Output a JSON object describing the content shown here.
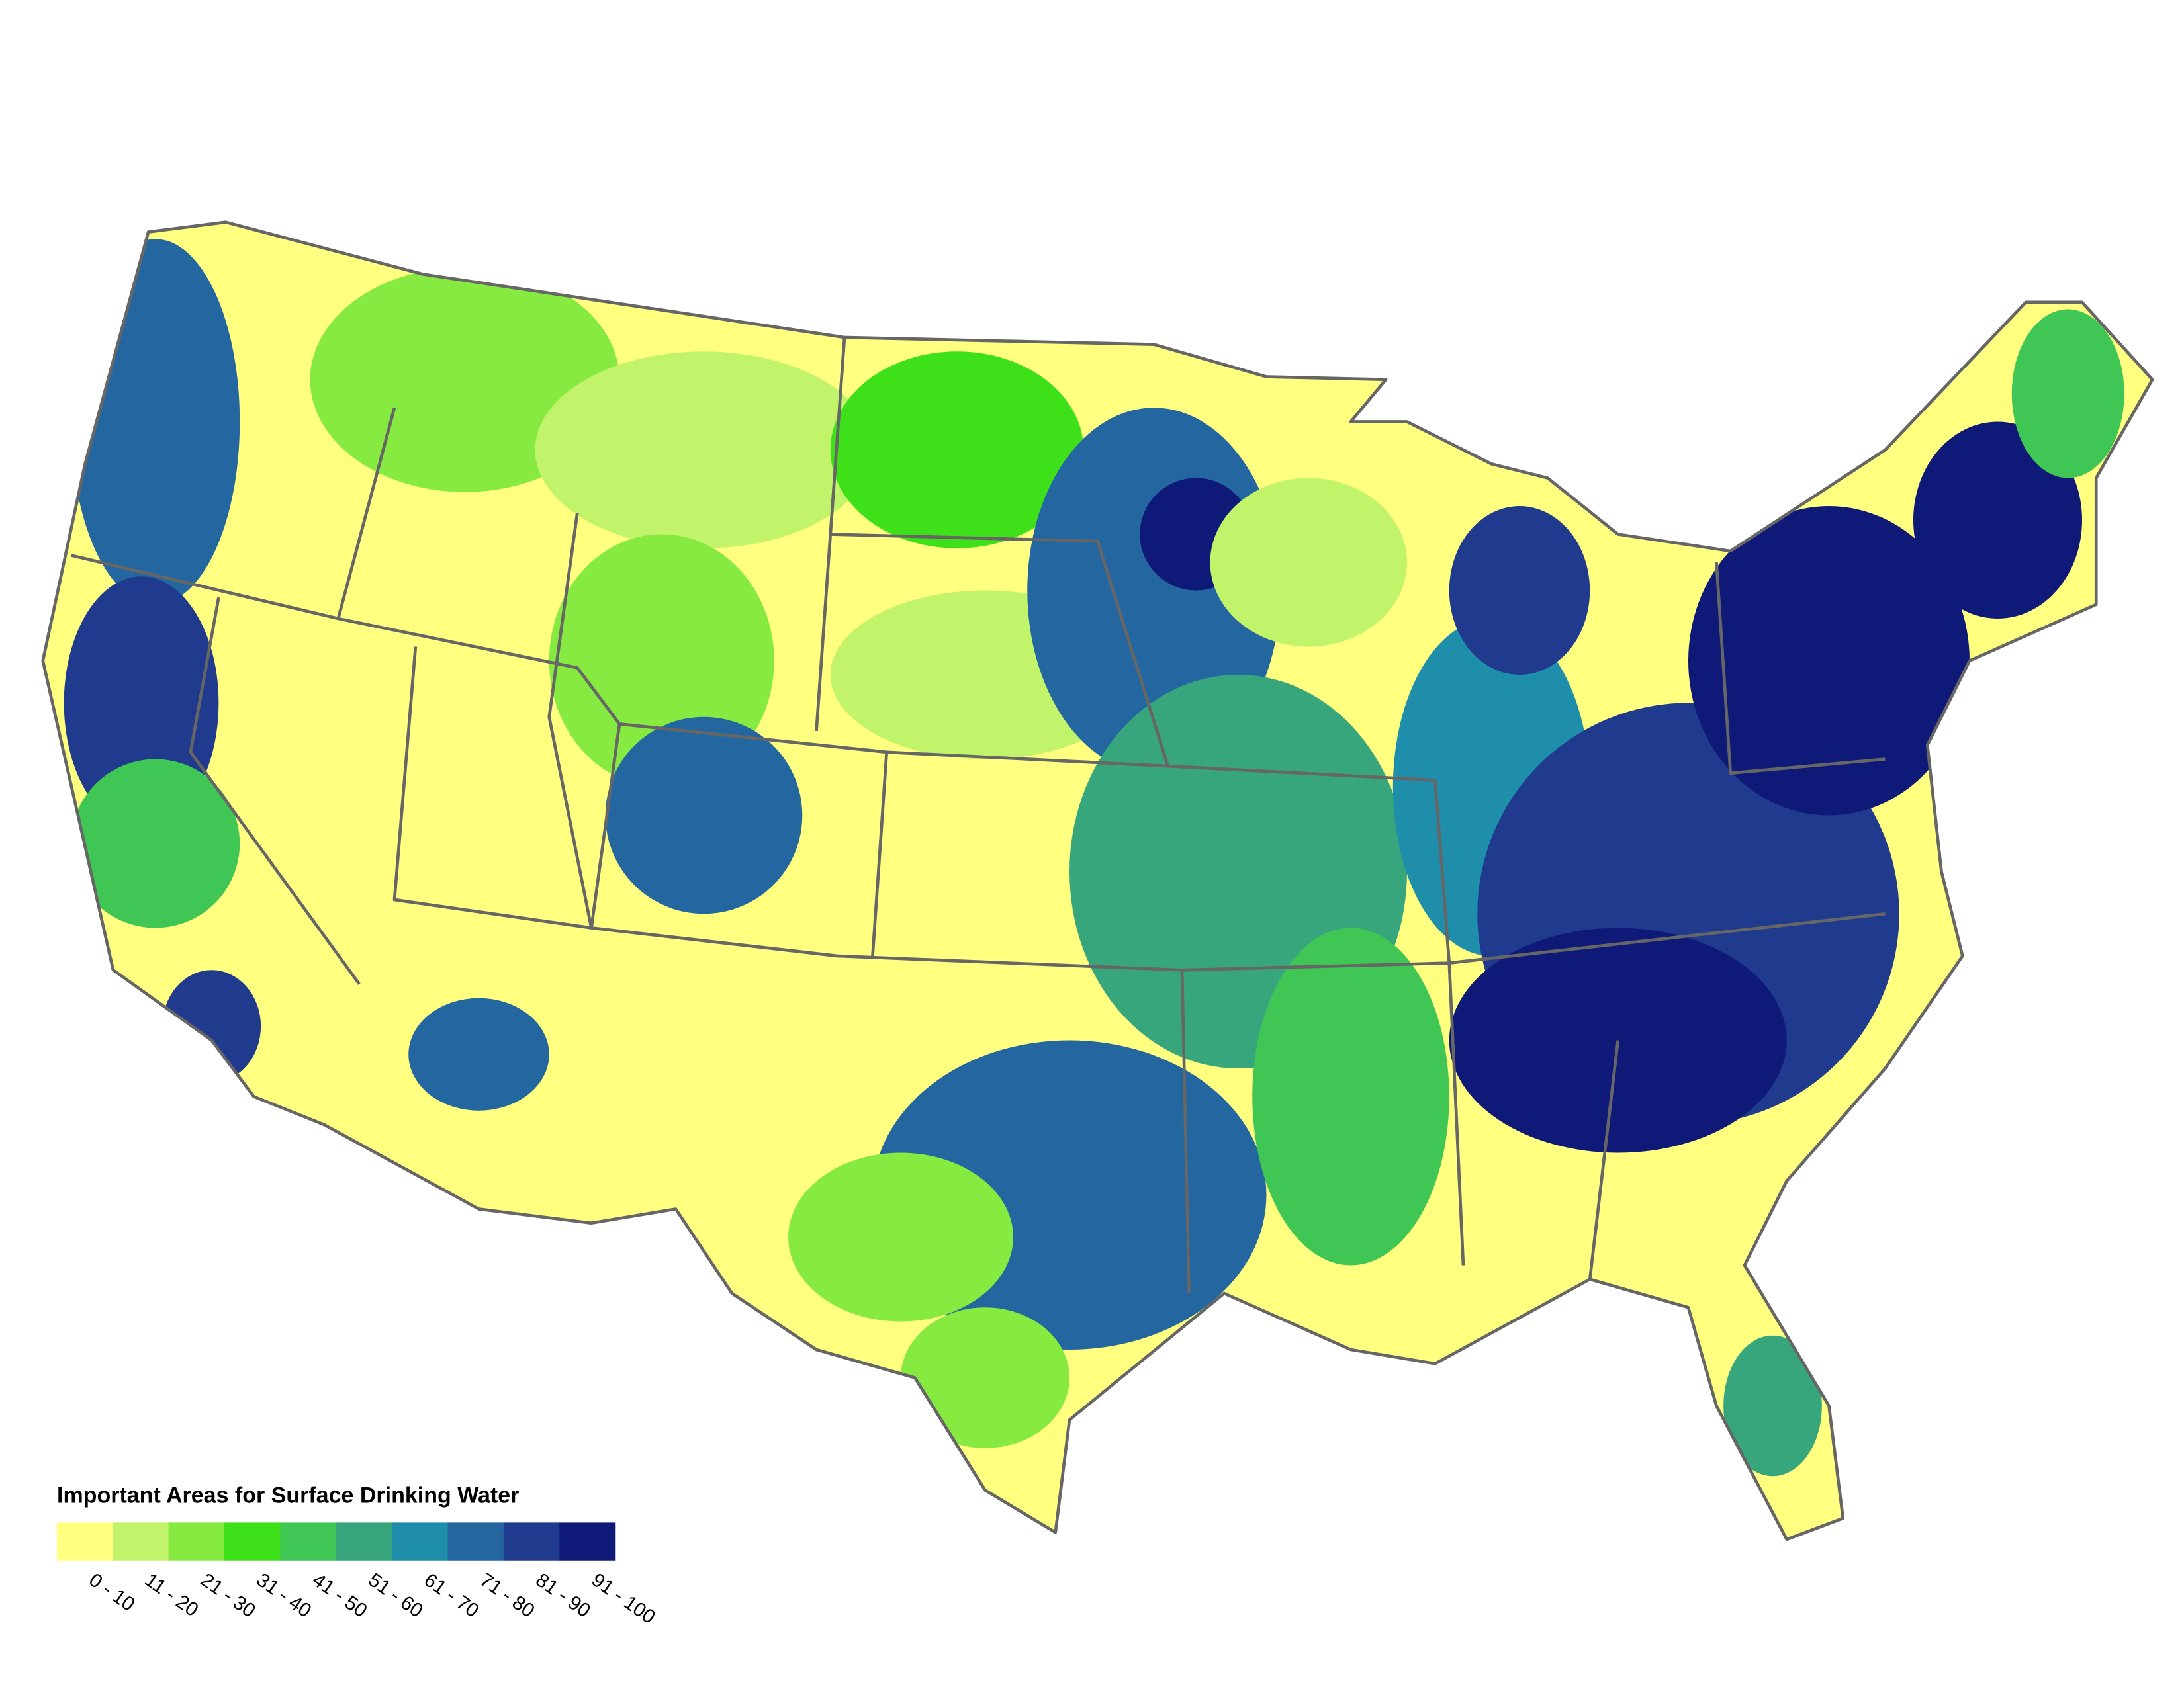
{
  "legend": {
    "title": "Important Areas for Surface Drinking Water",
    "items": [
      {
        "label": "0 - 10",
        "color": "#ffff80"
      },
      {
        "label": "11 - 20",
        "color": "#c1f46a"
      },
      {
        "label": "21 - 30",
        "color": "#86ea40"
      },
      {
        "label": "31 - 40",
        "color": "#3ee01a"
      },
      {
        "label": "41 - 50",
        "color": "#40c655"
      },
      {
        "label": "51 - 60",
        "color": "#38a67c"
      },
      {
        "label": "61 - 70",
        "color": "#1f8eaa"
      },
      {
        "label": "71 - 80",
        "color": "#2466a0"
      },
      {
        "label": "81 - 90",
        "color": "#203b8d"
      },
      {
        "label": "91 - 100",
        "color": "#0f1977"
      }
    ]
  }
}
